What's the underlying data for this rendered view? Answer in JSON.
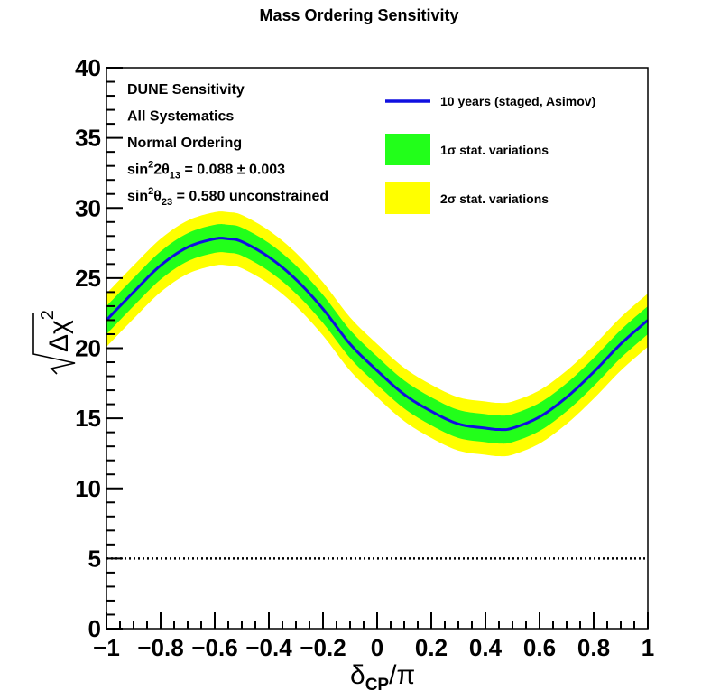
{
  "chart_data": {
    "type": "line",
    "title": "Mass Ordering Sensitivity",
    "xlabel": {
      "main": "δ",
      "sub": "CP",
      "suffix": "/π"
    },
    "ylabel": {
      "main": "Δχ",
      "sup": "2"
    },
    "xlim": [
      -1,
      1
    ],
    "ylim": [
      0,
      40
    ],
    "x_tick_labels": [
      "−1",
      "−0.8",
      "−0.6",
      "−0.4",
      "−0.2",
      "0",
      "0.2",
      "0.4",
      "0.6",
      "0.8",
      "1"
    ],
    "x_tick_values": [
      -1,
      -0.8,
      -0.6,
      -0.4,
      -0.2,
      0,
      0.2,
      0.4,
      0.6,
      0.8,
      1
    ],
    "y_tick_labels": [
      "0",
      "5",
      "10",
      "15",
      "20",
      "25",
      "30",
      "35",
      "40"
    ],
    "y_tick_values": [
      0,
      5,
      10,
      15,
      20,
      25,
      30,
      35,
      40
    ],
    "grid": false,
    "legend_position": "top-right",
    "x": [
      -1.0,
      -0.9,
      -0.8,
      -0.7,
      -0.6,
      -0.55,
      -0.5,
      -0.4,
      -0.3,
      -0.2,
      -0.1,
      0.0,
      0.1,
      0.2,
      0.3,
      0.4,
      0.45,
      0.5,
      0.6,
      0.7,
      0.8,
      0.9,
      1.0
    ],
    "series": [
      {
        "name": "10 years (staged, Asimov)",
        "color": "#1010e0",
        "values": [
          22.0,
          24.0,
          25.9,
          27.2,
          27.8,
          27.8,
          27.6,
          26.5,
          24.9,
          22.8,
          20.3,
          18.4,
          16.7,
          15.5,
          14.6,
          14.3,
          14.2,
          14.3,
          15.1,
          16.5,
          18.3,
          20.3,
          22.0
        ]
      },
      {
        "name": "1σ stat. variations",
        "color": "#22ff1a",
        "band_half_width": 1.0
      },
      {
        "name": "2σ stat. variations",
        "color": "#ffff00",
        "band_half_width": 1.9
      }
    ],
    "reference_line": {
      "y": 5,
      "style": "dotted"
    },
    "annotations": [
      {
        "text": "DUNE Sensitivity"
      },
      {
        "text": "All Systematics"
      },
      {
        "text": "Normal Ordering"
      },
      {
        "text": "sin²2θ₁₃ = 0.088 ± 0.003",
        "parts": [
          "sin",
          "2",
          "2θ",
          "13",
          " = 0.088 ± 0.003"
        ]
      },
      {
        "text": "sin²θ₂₃ = 0.580 unconstrained",
        "parts": [
          "sin",
          "2",
          "θ",
          "23",
          " = 0.580 unconstrained"
        ]
      }
    ]
  }
}
